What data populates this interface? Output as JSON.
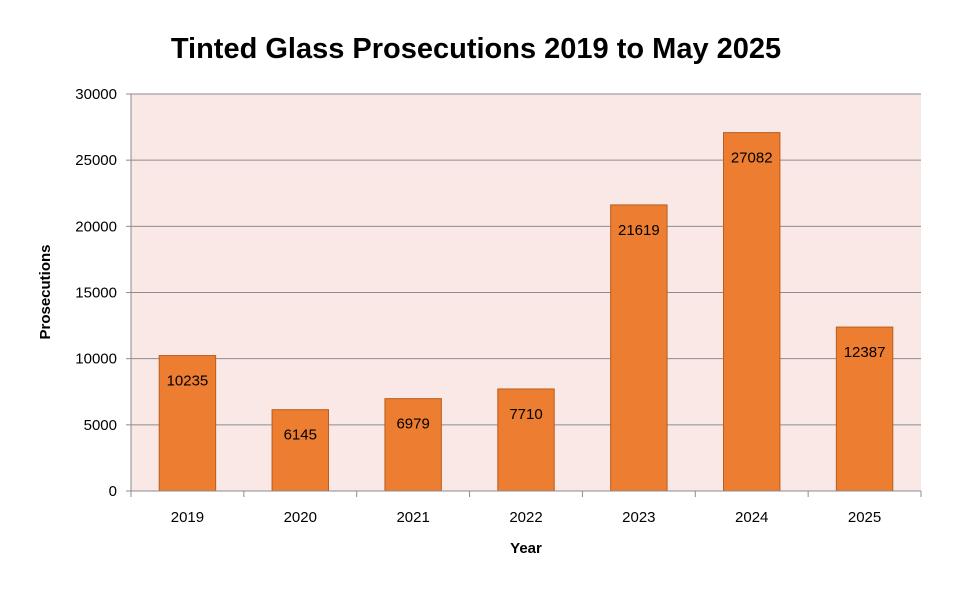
{
  "chart_data": {
    "type": "bar",
    "title": "Tinted Glass Prosecutions 2019 to May 2025",
    "xlabel": "Year",
    "ylabel": "Prosecutions",
    "categories": [
      "2019",
      "2020",
      "2021",
      "2022",
      "2023",
      "2024",
      "2025"
    ],
    "values": [
      10235,
      6145,
      6979,
      7710,
      21619,
      27082,
      12387
    ],
    "data_labels": [
      "10235",
      "6145",
      "6979",
      "7710",
      "21619",
      "27082",
      "12387"
    ],
    "ylim": [
      0,
      30000
    ],
    "yticks": [
      "0",
      "5000",
      "10000",
      "15000",
      "20000",
      "25000",
      "30000"
    ],
    "grid": true,
    "legend": "none",
    "colors": {
      "bar": "#ed7d31",
      "bar_border": "#b85d1e",
      "plot_background": "#f9e8e6",
      "gridline": "#8c8c8c"
    }
  }
}
